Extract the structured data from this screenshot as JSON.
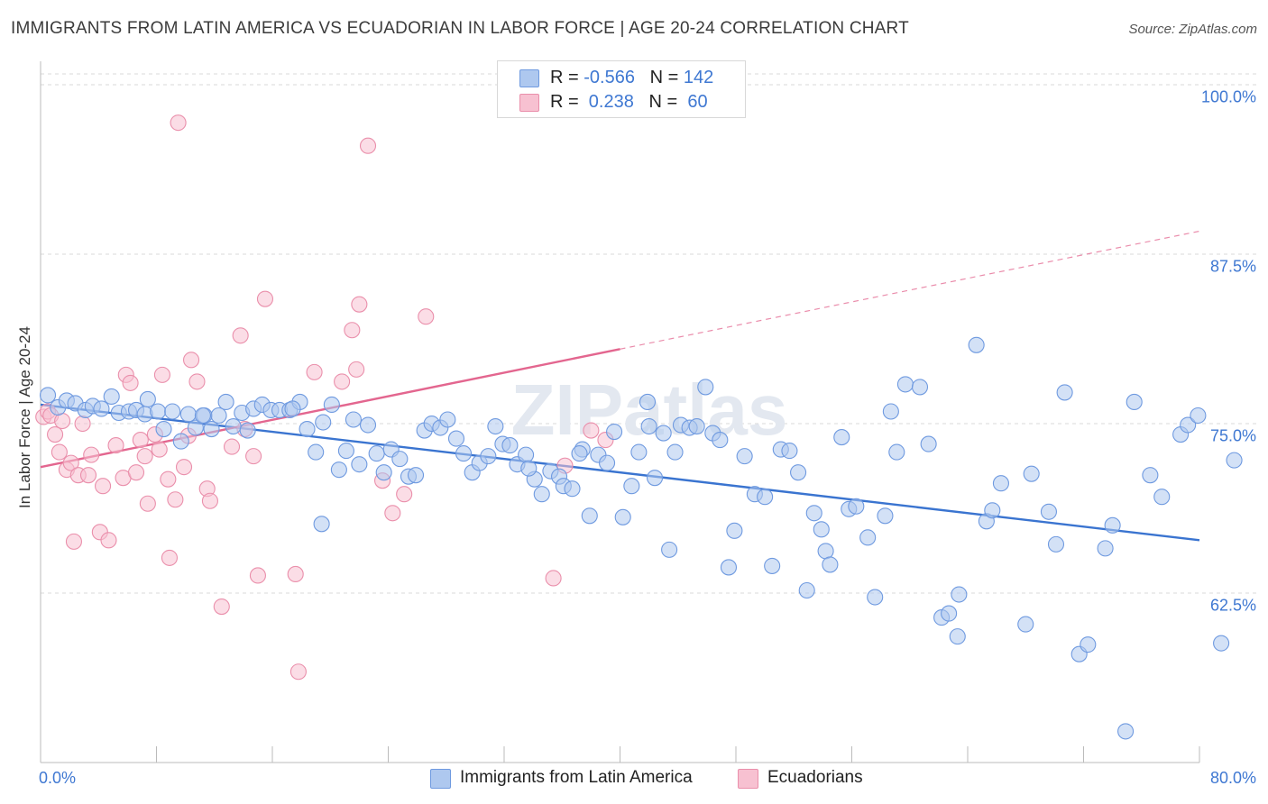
{
  "title": "IMMIGRANTS FROM LATIN AMERICA VS ECUADORIAN IN LABOR FORCE | AGE 20-24 CORRELATION CHART",
  "source": "Source: ZipAtlas.com",
  "watermark": "ZIPatlas",
  "colors": {
    "blue_fill": "#aec8ef",
    "blue_stroke": "#6f9ae0",
    "blue_line": "#3a74d0",
    "pink_fill": "#f7c1d1",
    "pink_stroke": "#ea8fab",
    "pink_line": "#e3668f",
    "axis_text": "#3f78d2",
    "grid": "#d9d9d9"
  },
  "legend": {
    "rows": [
      {
        "r_label": "R = ",
        "r_value": "-0.566",
        "n_label": "N = ",
        "n_value": "142",
        "color": "blue"
      },
      {
        "r_label": "R = ",
        "r_value": " 0.238",
        "n_label": "N = ",
        "n_value": " 60",
        "color": "pink"
      }
    ]
  },
  "bottom_legend": [
    {
      "label": "Immigrants from Latin America",
      "color": "blue"
    },
    {
      "label": "Ecuadorians",
      "color": "pink"
    }
  ],
  "chart_data": {
    "type": "scatter",
    "title": "IMMIGRANTS FROM LATIN AMERICA VS ECUADORIAN IN LABOR FORCE | AGE 20-24 CORRELATION CHART",
    "xlabel": "",
    "ylabel": "In Labor Force | Age 20-24",
    "xlim": [
      0,
      80
    ],
    "ylim": [
      50,
      101.2
    ],
    "x_tick_labels": [
      "0.0%",
      "80.0%"
    ],
    "y_ticks": [
      {
        "value": 100.0,
        "label": "100.0%"
      },
      {
        "value": 87.5,
        "label": "87.5%"
      },
      {
        "value": 75.0,
        "label": "75.0%"
      },
      {
        "value": 62.5,
        "label": "62.5%"
      }
    ],
    "grid": true,
    "series": [
      {
        "name": "Immigrants from Latin America",
        "color": "blue",
        "R": -0.566,
        "N": 142,
        "trend": {
          "x1": 0,
          "y1": 76.4,
          "x2": 80,
          "y2": 66.4,
          "dashed_from_x": null
        },
        "points": [
          [
            0.5,
            77.1
          ],
          [
            1.2,
            76.2
          ],
          [
            1.8,
            76.7
          ],
          [
            2.4,
            76.5
          ],
          [
            3.1,
            76.0
          ],
          [
            3.6,
            76.3
          ],
          [
            4.2,
            76.1
          ],
          [
            4.9,
            77.0
          ],
          [
            5.4,
            75.8
          ],
          [
            6.1,
            75.9
          ],
          [
            6.6,
            76.0
          ],
          [
            7.2,
            75.7
          ],
          [
            7.4,
            76.8
          ],
          [
            8.1,
            75.9
          ],
          [
            8.5,
            74.6
          ],
          [
            9.1,
            75.9
          ],
          [
            9.7,
            73.7
          ],
          [
            10.2,
            75.7
          ],
          [
            10.7,
            74.7
          ],
          [
            11.3,
            75.6
          ],
          [
            11.8,
            74.6
          ],
          [
            12.3,
            75.6
          ],
          [
            12.8,
            76.6
          ],
          [
            13.3,
            74.8
          ],
          [
            13.9,
            75.8
          ],
          [
            14.3,
            74.5
          ],
          [
            14.7,
            76.1
          ],
          [
            15.3,
            76.4
          ],
          [
            15.9,
            76.0
          ],
          [
            16.5,
            76.0
          ],
          [
            17.2,
            76.0
          ],
          [
            17.9,
            76.6
          ],
          [
            18.4,
            74.6
          ],
          [
            19.0,
            72.9
          ],
          [
            19.5,
            75.1
          ],
          [
            20.1,
            76.4
          ],
          [
            20.6,
            71.6
          ],
          [
            21.1,
            73.0
          ],
          [
            21.6,
            75.3
          ],
          [
            22.0,
            72.0
          ],
          [
            22.6,
            74.9
          ],
          [
            23.2,
            72.8
          ],
          [
            23.7,
            71.4
          ],
          [
            24.2,
            73.1
          ],
          [
            24.8,
            72.4
          ],
          [
            25.4,
            71.1
          ],
          [
            25.9,
            71.2
          ],
          [
            26.5,
            74.5
          ],
          [
            27.0,
            75.0
          ],
          [
            27.6,
            74.7
          ],
          [
            28.1,
            75.3
          ],
          [
            28.7,
            73.9
          ],
          [
            29.2,
            72.8
          ],
          [
            29.8,
            71.4
          ],
          [
            30.3,
            72.1
          ],
          [
            30.9,
            72.6
          ],
          [
            31.4,
            74.8
          ],
          [
            31.9,
            73.5
          ],
          [
            32.4,
            73.4
          ],
          [
            32.9,
            72.0
          ],
          [
            33.5,
            72.7
          ],
          [
            34.1,
            70.9
          ],
          [
            34.6,
            69.8
          ],
          [
            35.2,
            71.5
          ],
          [
            35.8,
            71.1
          ],
          [
            36.1,
            70.4
          ],
          [
            36.7,
            70.2
          ],
          [
            37.4,
            73.1
          ],
          [
            37.9,
            68.2
          ],
          [
            38.5,
            72.7
          ],
          [
            39.1,
            72.1
          ],
          [
            39.6,
            74.4
          ],
          [
            40.2,
            68.1
          ],
          [
            40.8,
            70.4
          ],
          [
            41.3,
            72.9
          ],
          [
            41.9,
            76.6
          ],
          [
            42.4,
            71.0
          ],
          [
            43.0,
            74.3
          ],
          [
            43.4,
            65.7
          ],
          [
            43.8,
            72.9
          ],
          [
            44.2,
            74.9
          ],
          [
            44.8,
            74.7
          ],
          [
            45.3,
            74.8
          ],
          [
            45.9,
            77.7
          ],
          [
            46.4,
            74.3
          ],
          [
            46.9,
            73.8
          ],
          [
            47.5,
            64.4
          ],
          [
            47.9,
            67.1
          ],
          [
            48.6,
            72.6
          ],
          [
            49.3,
            69.8
          ],
          [
            50.0,
            69.6
          ],
          [
            50.5,
            64.5
          ],
          [
            51.1,
            73.1
          ],
          [
            51.7,
            73.0
          ],
          [
            52.3,
            71.4
          ],
          [
            52.9,
            62.7
          ],
          [
            53.4,
            68.4
          ],
          [
            53.9,
            67.2
          ],
          [
            54.2,
            65.6
          ],
          [
            54.5,
            64.6
          ],
          [
            55.3,
            74.0
          ],
          [
            55.8,
            68.7
          ],
          [
            56.3,
            68.9
          ],
          [
            57.1,
            66.6
          ],
          [
            57.6,
            62.2
          ],
          [
            58.3,
            68.2
          ],
          [
            58.7,
            75.9
          ],
          [
            59.1,
            72.9
          ],
          [
            59.7,
            77.9
          ],
          [
            60.7,
            77.7
          ],
          [
            61.3,
            73.5
          ],
          [
            62.2,
            60.7
          ],
          [
            62.7,
            61.0
          ],
          [
            63.3,
            59.3
          ],
          [
            63.4,
            62.4
          ],
          [
            64.6,
            80.8
          ],
          [
            65.3,
            67.8
          ],
          [
            65.7,
            68.6
          ],
          [
            66.3,
            70.6
          ],
          [
            68.0,
            60.2
          ],
          [
            68.4,
            71.3
          ],
          [
            69.6,
            68.5
          ],
          [
            70.1,
            66.1
          ],
          [
            70.7,
            77.3
          ],
          [
            71.7,
            58.0
          ],
          [
            72.3,
            58.7
          ],
          [
            73.5,
            65.8
          ],
          [
            74.0,
            67.5
          ],
          [
            74.9,
            52.3
          ],
          [
            75.5,
            76.6
          ],
          [
            76.6,
            71.2
          ],
          [
            77.4,
            69.6
          ],
          [
            78.7,
            74.2
          ],
          [
            79.2,
            74.9
          ],
          [
            79.9,
            75.6
          ],
          [
            81.5,
            58.8
          ],
          [
            82.4,
            72.3
          ],
          [
            17.4,
            76.1
          ],
          [
            19.4,
            67.6
          ],
          [
            11.2,
            75.6
          ],
          [
            33.7,
            71.7
          ],
          [
            37.2,
            72.8
          ],
          [
            42.0,
            74.8
          ]
        ]
      },
      {
        "name": "Ecuadorians",
        "color": "pink",
        "R": 0.238,
        "N": 60,
        "trend": {
          "x1": 0,
          "y1": 71.8,
          "x2": 80,
          "y2": 89.2,
          "dashed_from_x": 40
        },
        "points": [
          [
            0.2,
            75.5
          ],
          [
            0.5,
            75.9
          ],
          [
            0.7,
            75.6
          ],
          [
            1.0,
            74.2
          ],
          [
            1.3,
            72.9
          ],
          [
            1.5,
            75.2
          ],
          [
            1.8,
            71.6
          ],
          [
            2.1,
            72.1
          ],
          [
            2.3,
            66.3
          ],
          [
            2.6,
            71.2
          ],
          [
            2.9,
            75.0
          ],
          [
            3.3,
            71.2
          ],
          [
            3.5,
            72.7
          ],
          [
            4.1,
            67.0
          ],
          [
            4.3,
            70.4
          ],
          [
            4.7,
            66.4
          ],
          [
            5.2,
            73.4
          ],
          [
            5.7,
            71.0
          ],
          [
            5.9,
            78.6
          ],
          [
            6.2,
            78.0
          ],
          [
            6.6,
            71.4
          ],
          [
            6.9,
            73.8
          ],
          [
            7.2,
            72.6
          ],
          [
            7.4,
            69.1
          ],
          [
            7.9,
            74.2
          ],
          [
            8.2,
            73.1
          ],
          [
            8.4,
            78.6
          ],
          [
            8.8,
            70.9
          ],
          [
            8.9,
            65.1
          ],
          [
            9.3,
            69.4
          ],
          [
            9.5,
            97.2
          ],
          [
            9.9,
            71.8
          ],
          [
            10.2,
            74.1
          ],
          [
            10.4,
            79.7
          ],
          [
            10.8,
            78.1
          ],
          [
            11.5,
            70.2
          ],
          [
            11.7,
            69.3
          ],
          [
            12.5,
            61.5
          ],
          [
            13.2,
            73.3
          ],
          [
            13.8,
            81.5
          ],
          [
            14.1,
            74.6
          ],
          [
            14.7,
            72.6
          ],
          [
            15.0,
            63.8
          ],
          [
            15.5,
            84.2
          ],
          [
            17.6,
            63.9
          ],
          [
            17.8,
            56.7
          ],
          [
            18.9,
            78.8
          ],
          [
            20.8,
            78.1
          ],
          [
            21.5,
            81.9
          ],
          [
            21.8,
            79.0
          ],
          [
            22.0,
            83.8
          ],
          [
            22.6,
            95.5
          ],
          [
            23.6,
            70.8
          ],
          [
            24.3,
            68.4
          ],
          [
            25.1,
            69.8
          ],
          [
            26.6,
            82.9
          ],
          [
            35.4,
            63.6
          ],
          [
            36.2,
            71.9
          ],
          [
            38.0,
            74.5
          ],
          [
            39.0,
            73.8
          ]
        ]
      }
    ]
  }
}
